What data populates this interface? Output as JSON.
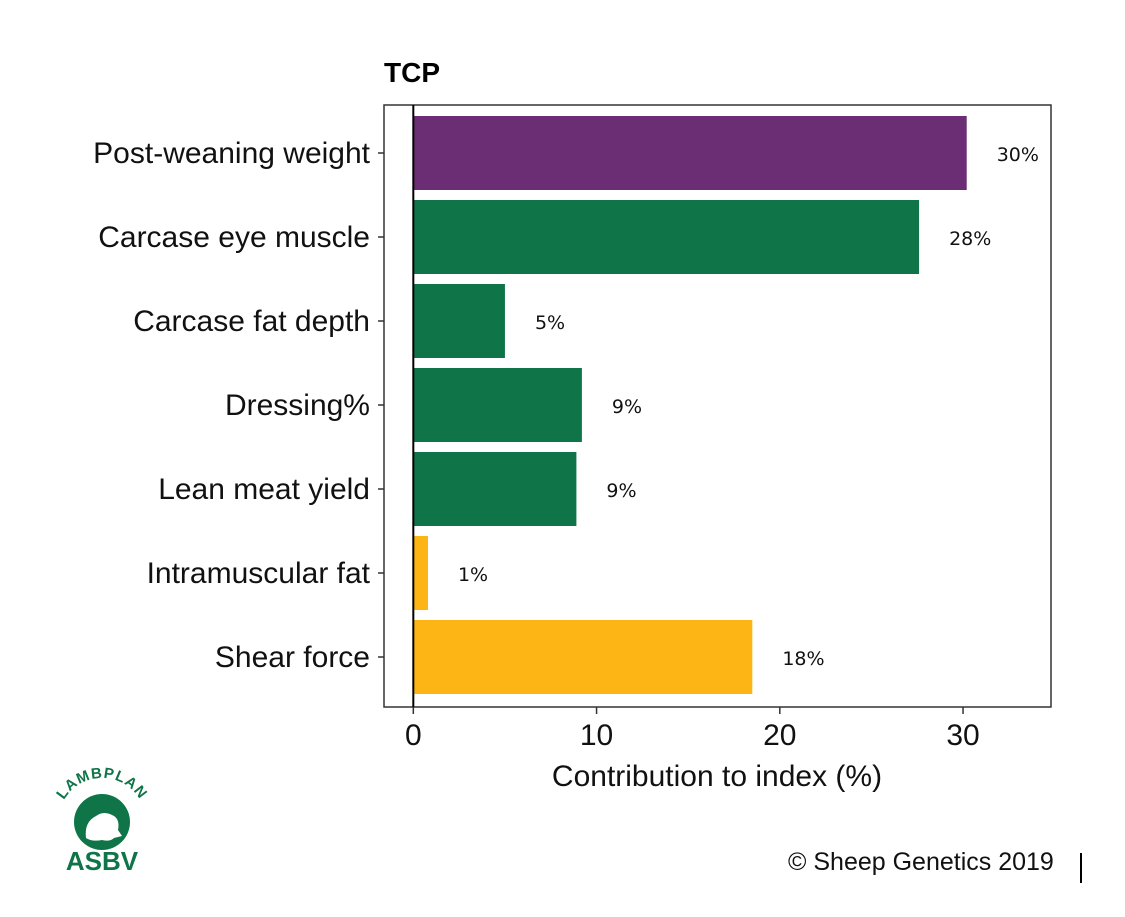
{
  "chart_data": {
    "type": "bar",
    "orientation": "horizontal",
    "title": "TCP",
    "xlabel": "Contribution to index (%)",
    "ylabel": "",
    "categories": [
      "Post-weaning weight",
      "Carcase eye muscle",
      "Carcase fat depth",
      "Dressing%",
      "Lean meat yield",
      "Intramuscular fat",
      "Shear force"
    ],
    "values": [
      30.2,
      27.6,
      5.0,
      9.2,
      8.9,
      0.8,
      18.5
    ],
    "data_labels": [
      "30%",
      "28%",
      "5%",
      "9%",
      "9%",
      "1%",
      "18%"
    ],
    "bar_colors": [
      "#6b2d73",
      "#0f7548",
      "#0f7548",
      "#0f7548",
      "#0f7548",
      "#fdb515",
      "#fdb515"
    ],
    "xlim": [
      -1.6,
      34.8
    ],
    "xticks": [
      0,
      10,
      20,
      30
    ],
    "xtick_labels": [
      "0",
      "10",
      "20",
      "30"
    ],
    "grid": false,
    "legend": "none"
  },
  "footer": {
    "copyright": "© Sheep Genetics 2019"
  },
  "logo": {
    "arc_text": "LAMBPLAN",
    "name": "ASBV",
    "color": "#0f7548"
  }
}
